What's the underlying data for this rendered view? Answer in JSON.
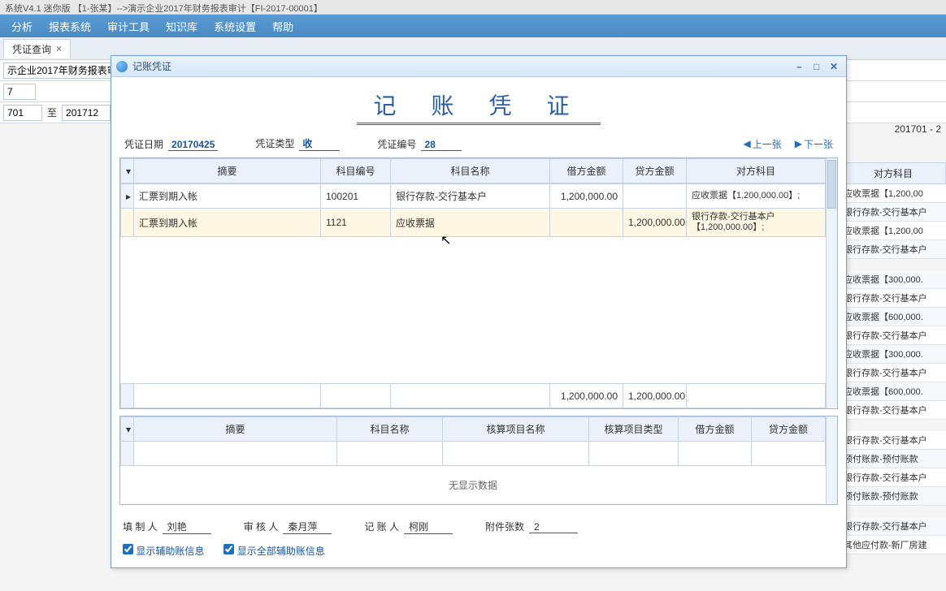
{
  "app": {
    "title": "系统V4.1 迷你版 【1-张某】-->演示企业2017年财务报表审计【FI-2017-00001】"
  },
  "menu": [
    "分析",
    "报表系统",
    "审计工具",
    "知识库",
    "系统设置",
    "帮助"
  ],
  "tabs": {
    "main": {
      "label": "凭证查询",
      "close": "×"
    }
  },
  "filters": {
    "project": "示企业2017年财务报表审",
    "num": "7",
    "period_from": "701",
    "to_label": "至",
    "period_to": "201712"
  },
  "period_summary": "201701 - 2",
  "bg": {
    "header": "对方科目",
    "rows": [
      "应收票据【1,200,00",
      "银行存款-交行基本户",
      "应收票据【1,200,00",
      "银行存款-交行基本户",
      "",
      "应收票据【300,000.",
      "银行存款-交行基本户",
      "应收票据【600,000.",
      "银行存款-交行基本户",
      "应收票据【300,000.",
      "银行存款-交行基本户",
      "应收票据【600,000.",
      "银行存款-交行基本户",
      "",
      "银行存款-交行基本户",
      "预付账款-预付账款",
      "银行存款-交行基本户",
      "预付账款-预付账款",
      "",
      "银行存款-交行基本户",
      "其他应付款-新厂房建"
    ]
  },
  "modal": {
    "title": "记账凭证",
    "doc_title": "记 账 凭 证",
    "meta": {
      "date_label": "凭证日期",
      "date": "20170425",
      "type_label": "凭证类型",
      "type": "收",
      "no_label": "凭证编号",
      "no": "28"
    },
    "nav": {
      "prev": "上一张",
      "next": "下一张"
    },
    "grid": {
      "headers": [
        "摘要",
        "科目编号",
        "科目名称",
        "借方金额",
        "贷方金额",
        "对方科目"
      ],
      "rows": [
        {
          "summary": "汇票到期入帐",
          "code": "100201",
          "name": "银行存款-交行基本户",
          "debit": "1,200,000.00",
          "credit": "",
          "opp": "应收票据【1,200,000.00】;"
        },
        {
          "summary": "汇票到期入帐",
          "code": "1121",
          "name": "应收票据",
          "debit": "",
          "credit": "1,200,000.00",
          "opp": "银行存款-交行基本户【1,200,000.00】;"
        }
      ],
      "totals": {
        "debit": "1,200,000.00",
        "credit": "1,200,000.00"
      }
    },
    "subgrid": {
      "headers": [
        "摘要",
        "科目名称",
        "核算项目名称",
        "核算项目类型",
        "借方金额",
        "贷方金额"
      ],
      "nodata": "无显示数据"
    },
    "footer": {
      "prep_label": "填 制 人",
      "prep": "刘艳",
      "audit_label": "审 核 人",
      "audit": "秦月萍",
      "book_label": "记 账 人",
      "book": "柯刚",
      "attach_label": "附件张数",
      "attach": "2"
    },
    "checks": {
      "c1": "显示辅助账信息",
      "c2": "显示全部辅助账信息"
    },
    "winbtns": {
      "min": "–",
      "max": "□",
      "close": "✕"
    }
  }
}
